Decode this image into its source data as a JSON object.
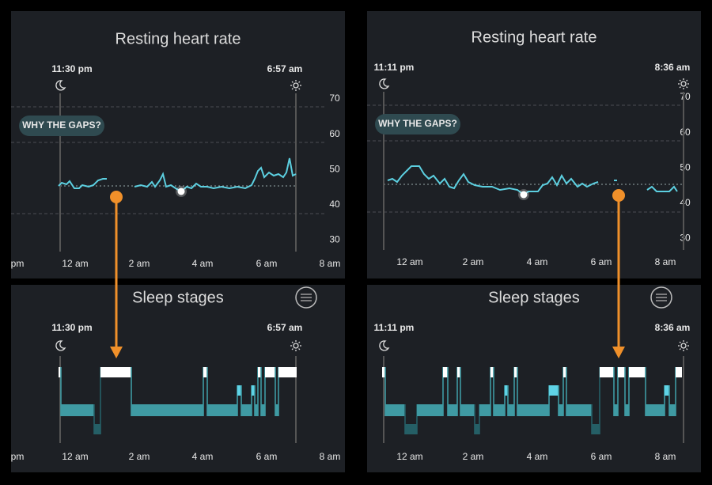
{
  "panels": [
    {
      "heart_rate": {
        "title": "Resting heart rate",
        "start_time": "11:30 pm",
        "end_time": "6:57 am",
        "button": "WHY THE GAPS?",
        "yticks": [
          "70",
          "60",
          "50",
          "40",
          "30"
        ],
        "xticks": [
          "pm",
          "12 am",
          "2 am",
          "4 am",
          "6 am",
          "8 am"
        ]
      },
      "sleep": {
        "title": "Sleep stages",
        "start_time": "11:30 pm",
        "end_time": "6:57 am",
        "xticks": [
          "pm",
          "12 am",
          "2 am",
          "4 am",
          "6 am",
          "8 am"
        ]
      }
    },
    {
      "heart_rate": {
        "title": "Resting heart rate",
        "start_time": "11:11 pm",
        "end_time": "8:36 am",
        "button": "WHY THE GAPS?",
        "yticks": [
          "70",
          "60",
          "50",
          "40",
          "30"
        ],
        "xticks": [
          "12 am",
          "2 am",
          "4 am",
          "6 am",
          "8 am"
        ]
      },
      "sleep": {
        "title": "Sleep stages",
        "start_time": "11:11 pm",
        "end_time": "8:36 am",
        "xticks": [
          "12 am",
          "2 am",
          "4 am",
          "6 am",
          "8 am"
        ]
      }
    }
  ]
}
